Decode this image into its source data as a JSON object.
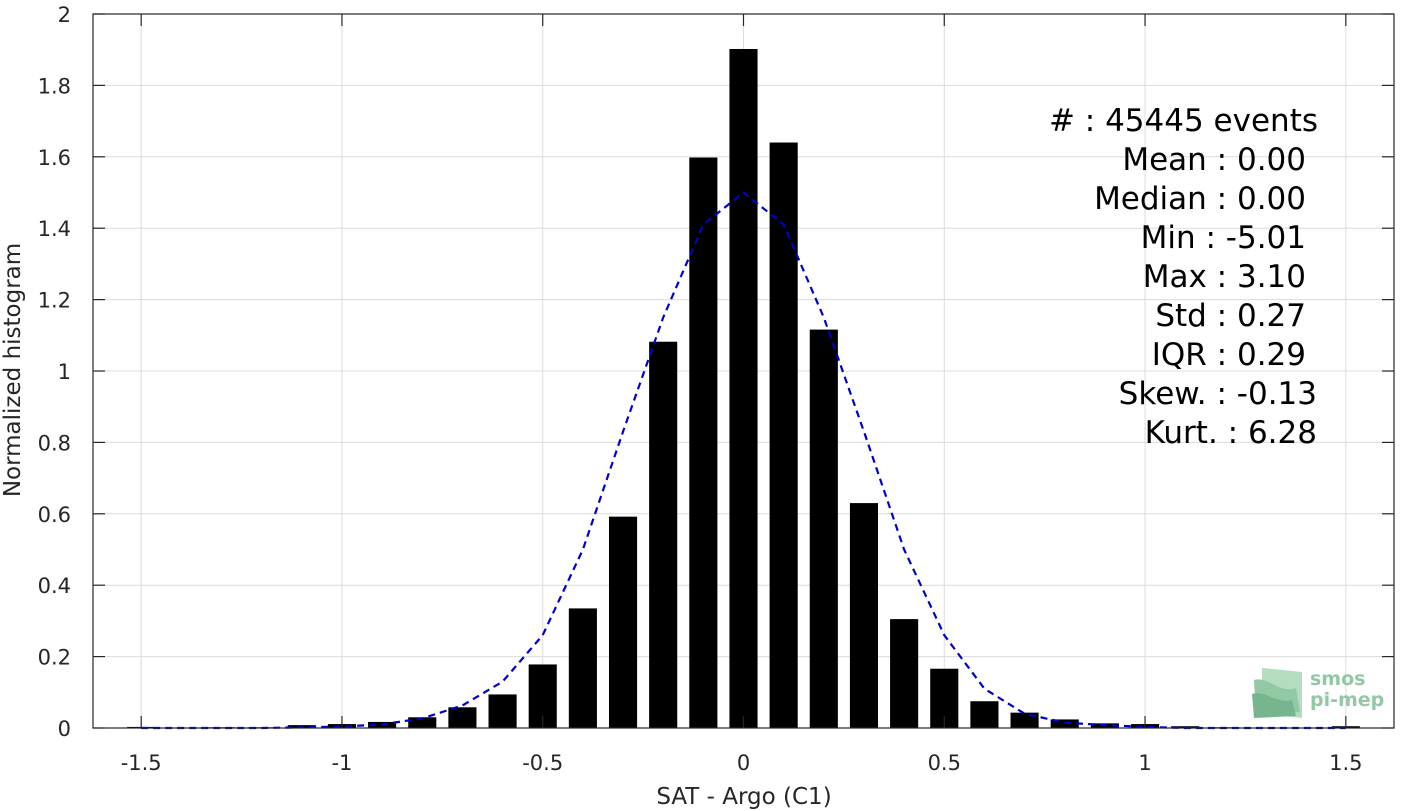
{
  "chart_data": {
    "type": "bar",
    "xlabel": "SAT - Argo (C1)",
    "ylabel": "Normalized histogram",
    "xlim": [
      -1.62,
      1.62
    ],
    "ylim": [
      0,
      2
    ],
    "grid": true,
    "x_ticks": [
      {
        "value": -1.5,
        "label": "-1.5"
      },
      {
        "value": -1,
        "label": "-1"
      },
      {
        "value": -0.5,
        "label": "-0.5"
      },
      {
        "value": 0,
        "label": "0"
      },
      {
        "value": 0.5,
        "label": "0.5"
      },
      {
        "value": 1,
        "label": "1"
      },
      {
        "value": 1.5,
        "label": "1.5"
      }
    ],
    "y_ticks": [
      {
        "value": 0,
        "label": "0"
      },
      {
        "value": 0.2,
        "label": "0.2"
      },
      {
        "value": 0.4,
        "label": "0.4"
      },
      {
        "value": 0.6,
        "label": "0.6"
      },
      {
        "value": 0.8,
        "label": "0.8"
      },
      {
        "value": 1,
        "label": "1"
      },
      {
        "value": 1.2,
        "label": "1.2"
      },
      {
        "value": 1.4,
        "label": "1.4"
      },
      {
        "value": 1.6,
        "label": "1.6"
      },
      {
        "value": 1.8,
        "label": "1.8"
      },
      {
        "value": 2,
        "label": "2"
      }
    ],
    "bar_width": 0.07,
    "bar_color": "#000000",
    "bars": {
      "x": [
        -1.5,
        -1.4,
        -1.3,
        -1.2,
        -1.1,
        -1.0,
        -0.9,
        -0.8,
        -0.7,
        -0.6,
        -0.5,
        -0.4,
        -0.3,
        -0.2,
        -0.1,
        0.0,
        0.1,
        0.2,
        0.3,
        0.4,
        0.5,
        0.6,
        0.7,
        0.8,
        0.9,
        1.0,
        1.1,
        1.2,
        1.3,
        1.4,
        1.5
      ],
      "values": [
        0.003,
        0.0,
        0.002,
        0.002,
        0.008,
        0.011,
        0.017,
        0.03,
        0.058,
        0.094,
        0.178,
        0.335,
        0.592,
        1.082,
        1.598,
        1.902,
        1.64,
        1.116,
        0.63,
        0.305,
        0.166,
        0.075,
        0.043,
        0.024,
        0.013,
        0.011,
        0.005,
        0.002,
        0.0,
        0.0,
        0.005
      ]
    },
    "fit_curve": {
      "color": "#0000cc",
      "style": "dashed",
      "x": [
        -1.5,
        -1.4,
        -1.3,
        -1.2,
        -1.1,
        -1.0,
        -0.9,
        -0.8,
        -0.7,
        -0.6,
        -0.5,
        -0.4,
        -0.3,
        -0.2,
        -0.1,
        0.0,
        0.1,
        0.2,
        0.3,
        0.4,
        0.5,
        0.6,
        0.7,
        0.8,
        0.9,
        1.0,
        1.1,
        1.2,
        1.3,
        1.4,
        1.5
      ],
      "y": [
        0.0,
        0.0,
        0.0,
        0.0,
        0.002,
        0.004,
        0.01,
        0.027,
        0.063,
        0.13,
        0.26,
        0.5,
        0.83,
        1.15,
        1.41,
        1.5,
        1.41,
        1.15,
        0.83,
        0.5,
        0.26,
        0.11,
        0.04,
        0.015,
        0.008,
        0.003,
        0.0,
        0.0,
        0.0,
        0.0,
        0.0
      ]
    },
    "stats": [
      {
        "label": "#  : 45445 events"
      },
      {
        "label": "Mean : 0.00"
      },
      {
        "label": "Median : 0.00"
      },
      {
        "label": "Min : -5.01"
      },
      {
        "label": "Max : 3.10"
      },
      {
        "label": "Std : 0.27"
      },
      {
        "label": "IQR : 0.29"
      },
      {
        "label": "Skew. : -0.13"
      },
      {
        "label": "Kurt. : 6.28"
      }
    ]
  },
  "logo": {
    "line1": "smos",
    "line2": "pi-mep",
    "color": "#7fbf95"
  }
}
